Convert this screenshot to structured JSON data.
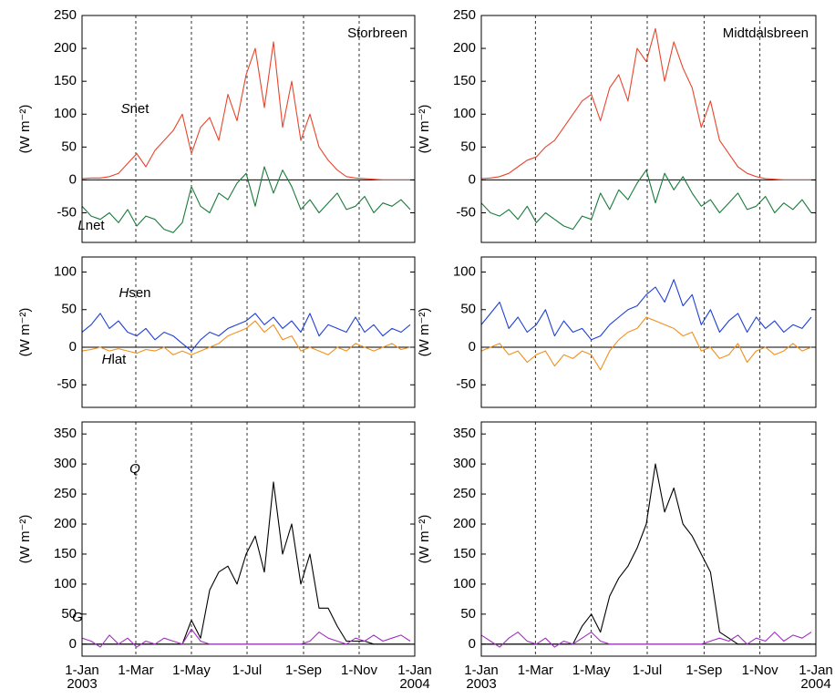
{
  "chart_data": [
    {
      "type": "line",
      "title": "Storbreen",
      "ylabel": "(W m⁻²)",
      "x": [
        "2003-01-01",
        "2003-01-11",
        "2003-01-21",
        "2003-01-31",
        "2003-02-10",
        "2003-02-20",
        "2003-03-02",
        "2003-03-12",
        "2003-03-22",
        "2003-04-01",
        "2003-04-11",
        "2003-04-21",
        "2003-05-01",
        "2003-05-11",
        "2003-05-21",
        "2003-05-31",
        "2003-06-10",
        "2003-06-20",
        "2003-06-30",
        "2003-07-10",
        "2003-07-20",
        "2003-07-30",
        "2003-08-09",
        "2003-08-19",
        "2003-08-29",
        "2003-09-08",
        "2003-09-18",
        "2003-09-28",
        "2003-10-08",
        "2003-10-18",
        "2003-10-28",
        "2003-11-07",
        "2003-11-17",
        "2003-11-27",
        "2003-12-07",
        "2003-12-17",
        "2003-12-27"
      ],
      "xlim": [
        "2003-01-01",
        "2004-01-01"
      ],
      "xticks": [
        {
          "value": "2003-01-01",
          "label": "1-Jan 2003"
        },
        {
          "value": "2003-03-01",
          "label": "1-Mar"
        },
        {
          "value": "2003-05-01",
          "label": "1-May"
        },
        {
          "value": "2003-07-01",
          "label": "1-Jul"
        },
        {
          "value": "2003-09-01",
          "label": "1-Sep"
        },
        {
          "value": "2003-11-01",
          "label": "1-Nov"
        },
        {
          "value": "2004-01-01",
          "label": "1-Jan 2004"
        }
      ],
      "ylim": [
        -95,
        250
      ],
      "yticks": [
        -50,
        0,
        50,
        100,
        150,
        200,
        250
      ],
      "grid_x": true,
      "series": [
        {
          "name": "Snet",
          "color": "#e8452c",
          "values": [
            2,
            3,
            3,
            5,
            10,
            25,
            40,
            20,
            45,
            60,
            75,
            100,
            40,
            80,
            95,
            60,
            130,
            90,
            160,
            200,
            110,
            210,
            80,
            150,
            60,
            100,
            50,
            30,
            15,
            5,
            3,
            2,
            1,
            0,
            0,
            0,
            0
          ]
        },
        {
          "name": "Lnet",
          "color": "#1a7a3a",
          "values": [
            -40,
            -55,
            -60,
            -50,
            -65,
            -45,
            -70,
            -55,
            -60,
            -75,
            -80,
            -65,
            -10,
            -40,
            -50,
            -20,
            -30,
            -5,
            10,
            -40,
            20,
            -20,
            15,
            -10,
            -45,
            -30,
            -50,
            -35,
            -20,
            -45,
            -40,
            -25,
            -50,
            -35,
            -40,
            -30,
            -45
          ]
        }
      ]
    },
    {
      "type": "line",
      "title": "Midtdalsbreen",
      "ylabel": "(W m⁻²)",
      "x": [
        "2003-01-01",
        "2003-01-11",
        "2003-01-21",
        "2003-01-31",
        "2003-02-10",
        "2003-02-20",
        "2003-03-02",
        "2003-03-12",
        "2003-03-22",
        "2003-04-01",
        "2003-04-11",
        "2003-04-21",
        "2003-05-01",
        "2003-05-11",
        "2003-05-21",
        "2003-05-31",
        "2003-06-10",
        "2003-06-20",
        "2003-06-30",
        "2003-07-10",
        "2003-07-20",
        "2003-07-30",
        "2003-08-09",
        "2003-08-19",
        "2003-08-29",
        "2003-09-08",
        "2003-09-18",
        "2003-09-28",
        "2003-10-08",
        "2003-10-18",
        "2003-10-28",
        "2003-11-07",
        "2003-11-17",
        "2003-11-27",
        "2003-12-07",
        "2003-12-17",
        "2003-12-27"
      ],
      "xlim": [
        "2003-01-01",
        "2004-01-01"
      ],
      "xticks": [
        {
          "value": "2003-01-01",
          "label": "1-Jan 2003"
        },
        {
          "value": "2003-03-01",
          "label": "1-Mar"
        },
        {
          "value": "2003-05-01",
          "label": "1-May"
        },
        {
          "value": "2003-07-01",
          "label": "1-Jul"
        },
        {
          "value": "2003-09-01",
          "label": "1-Sep"
        },
        {
          "value": "2003-11-01",
          "label": "1-Nov"
        },
        {
          "value": "2004-01-01",
          "label": "1-Jan 2004"
        }
      ],
      "ylim": [
        -95,
        250
      ],
      "yticks": [
        -50,
        0,
        50,
        100,
        150,
        200,
        250
      ],
      "grid_x": true,
      "series": [
        {
          "color": "#e8452c",
          "values": [
            2,
            3,
            5,
            10,
            20,
            30,
            35,
            50,
            60,
            80,
            100,
            120,
            130,
            90,
            140,
            160,
            120,
            200,
            180,
            230,
            150,
            210,
            170,
            140,
            80,
            120,
            60,
            40,
            20,
            10,
            5,
            2,
            1,
            0,
            0,
            0,
            0
          ]
        },
        {
          "color": "#1a7a3a",
          "values": [
            -35,
            -50,
            -55,
            -45,
            -60,
            -40,
            -65,
            -50,
            -60,
            -70,
            -75,
            -55,
            -60,
            -20,
            -45,
            -15,
            -30,
            -5,
            15,
            -35,
            10,
            -15,
            5,
            -20,
            -40,
            -30,
            -50,
            -35,
            -20,
            -45,
            -40,
            -25,
            -50,
            -35,
            -45,
            -30,
            -50
          ]
        }
      ]
    },
    {
      "type": "line",
      "ylabel": "(W m⁻²)",
      "x": [
        "2003-01-01",
        "2003-01-11",
        "2003-01-21",
        "2003-01-31",
        "2003-02-10",
        "2003-02-20",
        "2003-03-02",
        "2003-03-12",
        "2003-03-22",
        "2003-04-01",
        "2003-04-11",
        "2003-04-21",
        "2003-05-01",
        "2003-05-11",
        "2003-05-21",
        "2003-05-31",
        "2003-06-10",
        "2003-06-20",
        "2003-06-30",
        "2003-07-10",
        "2003-07-20",
        "2003-07-30",
        "2003-08-09",
        "2003-08-19",
        "2003-08-29",
        "2003-09-08",
        "2003-09-18",
        "2003-09-28",
        "2003-10-08",
        "2003-10-18",
        "2003-10-28",
        "2003-11-07",
        "2003-11-17",
        "2003-11-27",
        "2003-12-07",
        "2003-12-17",
        "2003-12-27"
      ],
      "xlim": [
        "2003-01-01",
        "2004-01-01"
      ],
      "xticks": [
        {
          "value": "2003-01-01",
          "label": "1-Jan 2003"
        },
        {
          "value": "2003-03-01",
          "label": "1-Mar"
        },
        {
          "value": "2003-05-01",
          "label": "1-May"
        },
        {
          "value": "2003-07-01",
          "label": "1-Jul"
        },
        {
          "value": "2003-09-01",
          "label": "1-Sep"
        },
        {
          "value": "2003-11-01",
          "label": "1-Nov"
        },
        {
          "value": "2004-01-01",
          "label": "1-Jan 2004"
        }
      ],
      "ylim": [
        -80,
        120
      ],
      "yticks": [
        -50,
        0,
        50,
        100
      ],
      "grid_x": true,
      "series": [
        {
          "name": "Hsen",
          "color": "#1f3fd6",
          "values": [
            20,
            30,
            45,
            25,
            35,
            20,
            15,
            25,
            10,
            20,
            15,
            5,
            -5,
            10,
            20,
            15,
            25,
            30,
            35,
            45,
            30,
            40,
            25,
            35,
            20,
            45,
            15,
            30,
            25,
            20,
            40,
            20,
            30,
            15,
            25,
            20,
            30
          ]
        },
        {
          "name": "Hlat",
          "color": "#f0901e",
          "values": [
            -5,
            -3,
            0,
            -5,
            -2,
            -5,
            -8,
            -3,
            -5,
            0,
            -10,
            -5,
            -10,
            -5,
            0,
            5,
            15,
            20,
            25,
            35,
            20,
            30,
            10,
            15,
            -5,
            0,
            -5,
            -10,
            0,
            -5,
            5,
            0,
            -5,
            0,
            5,
            -3,
            0
          ]
        }
      ]
    },
    {
      "type": "line",
      "ylabel": "(W m⁻²)",
      "x": [
        "2003-01-01",
        "2003-01-11",
        "2003-01-21",
        "2003-01-31",
        "2003-02-10",
        "2003-02-20",
        "2003-03-02",
        "2003-03-12",
        "2003-03-22",
        "2003-04-01",
        "2003-04-11",
        "2003-04-21",
        "2003-05-01",
        "2003-05-11",
        "2003-05-21",
        "2003-05-31",
        "2003-06-10",
        "2003-06-20",
        "2003-06-30",
        "2003-07-10",
        "2003-07-20",
        "2003-07-30",
        "2003-08-09",
        "2003-08-19",
        "2003-08-29",
        "2003-09-08",
        "2003-09-18",
        "2003-09-28",
        "2003-10-08",
        "2003-10-18",
        "2003-10-28",
        "2003-11-07",
        "2003-11-17",
        "2003-11-27",
        "2003-12-07",
        "2003-12-17",
        "2003-12-27"
      ],
      "xlim": [
        "2003-01-01",
        "2004-01-01"
      ],
      "xticks": [
        {
          "value": "2003-01-01",
          "label": "1-Jan 2003"
        },
        {
          "value": "2003-03-01",
          "label": "1-Mar"
        },
        {
          "value": "2003-05-01",
          "label": "1-May"
        },
        {
          "value": "2003-07-01",
          "label": "1-Jul"
        },
        {
          "value": "2003-09-01",
          "label": "1-Sep"
        },
        {
          "value": "2003-11-01",
          "label": "1-Nov"
        },
        {
          "value": "2004-01-01",
          "label": "1-Jan 2004"
        }
      ],
      "ylim": [
        -80,
        120
      ],
      "yticks": [
        -50,
        0,
        50,
        100
      ],
      "grid_x": true,
      "series": [
        {
          "color": "#1f3fd6",
          "values": [
            30,
            45,
            60,
            25,
            40,
            20,
            30,
            50,
            15,
            35,
            20,
            25,
            10,
            15,
            30,
            40,
            50,
            55,
            70,
            80,
            60,
            90,
            55,
            70,
            30,
            50,
            20,
            35,
            45,
            20,
            40,
            25,
            35,
            20,
            30,
            25,
            40
          ]
        },
        {
          "color": "#f0901e",
          "values": [
            -5,
            0,
            5,
            -10,
            -5,
            -20,
            -10,
            -5,
            -25,
            -10,
            -15,
            -5,
            -10,
            -30,
            -5,
            10,
            20,
            25,
            40,
            35,
            30,
            25,
            15,
            20,
            -5,
            0,
            -15,
            -10,
            5,
            -20,
            -5,
            0,
            -10,
            -5,
            5,
            -5,
            0
          ]
        }
      ]
    },
    {
      "type": "line",
      "ylabel": "(W m⁻²)",
      "x": [
        "2003-01-01",
        "2003-01-11",
        "2003-01-21",
        "2003-01-31",
        "2003-02-10",
        "2003-02-20",
        "2003-03-02",
        "2003-03-12",
        "2003-03-22",
        "2003-04-01",
        "2003-04-11",
        "2003-04-21",
        "2003-05-01",
        "2003-05-11",
        "2003-05-21",
        "2003-05-31",
        "2003-06-10",
        "2003-06-20",
        "2003-06-30",
        "2003-07-10",
        "2003-07-20",
        "2003-07-30",
        "2003-08-09",
        "2003-08-19",
        "2003-08-29",
        "2003-09-08",
        "2003-09-18",
        "2003-09-28",
        "2003-10-08",
        "2003-10-18",
        "2003-10-28",
        "2003-11-07",
        "2003-11-17",
        "2003-11-27",
        "2003-12-07",
        "2003-12-17",
        "2003-12-27"
      ],
      "xlim": [
        "2003-01-01",
        "2004-01-01"
      ],
      "xticks": [
        {
          "value": "2003-01-01",
          "label": "1-Jan 2003"
        },
        {
          "value": "2003-03-01",
          "label": "1-Mar"
        },
        {
          "value": "2003-05-01",
          "label": "1-May"
        },
        {
          "value": "2003-07-01",
          "label": "1-Jul"
        },
        {
          "value": "2003-09-01",
          "label": "1-Sep"
        },
        {
          "value": "2003-11-01",
          "label": "1-Nov"
        },
        {
          "value": "2004-01-01",
          "label": "1-Jan 2004"
        }
      ],
      "ylim": [
        -20,
        370
      ],
      "yticks": [
        0,
        50,
        100,
        150,
        200,
        250,
        300,
        350
      ],
      "grid_x": true,
      "series": [
        {
          "name": "Q",
          "color": "#000000",
          "values": [
            0,
            0,
            0,
            0,
            0,
            0,
            0,
            0,
            0,
            0,
            0,
            0,
            40,
            10,
            90,
            120,
            130,
            100,
            150,
            180,
            120,
            270,
            150,
            200,
            100,
            150,
            60,
            60,
            30,
            5,
            5,
            5,
            0,
            0,
            0,
            0,
            0
          ]
        },
        {
          "name": "G",
          "color": "#a030c0",
          "values": [
            10,
            5,
            -5,
            15,
            0,
            10,
            -5,
            5,
            0,
            10,
            5,
            0,
            25,
            5,
            0,
            0,
            0,
            0,
            0,
            0,
            0,
            0,
            0,
            0,
            0,
            5,
            20,
            10,
            5,
            0,
            10,
            5,
            15,
            5,
            10,
            15,
            5
          ]
        }
      ]
    },
    {
      "type": "line",
      "ylabel": "(W m⁻²)",
      "x": [
        "2003-01-01",
        "2003-01-11",
        "2003-01-21",
        "2003-01-31",
        "2003-02-10",
        "2003-02-20",
        "2003-03-02",
        "2003-03-12",
        "2003-03-22",
        "2003-04-01",
        "2003-04-11",
        "2003-04-21",
        "2003-05-01",
        "2003-05-11",
        "2003-05-21",
        "2003-05-31",
        "2003-06-10",
        "2003-06-20",
        "2003-06-30",
        "2003-07-10",
        "2003-07-20",
        "2003-07-30",
        "2003-08-09",
        "2003-08-19",
        "2003-08-29",
        "2003-09-08",
        "2003-09-18",
        "2003-09-28",
        "2003-10-08",
        "2003-10-18",
        "2003-10-28",
        "2003-11-07",
        "2003-11-17",
        "2003-11-27",
        "2003-12-07",
        "2003-12-17",
        "2003-12-27"
      ],
      "xlim": [
        "2003-01-01",
        "2004-01-01"
      ],
      "xticks": [
        {
          "value": "2003-01-01",
          "label": "1-Jan 2003"
        },
        {
          "value": "2003-03-01",
          "label": "1-Mar"
        },
        {
          "value": "2003-05-01",
          "label": "1-May"
        },
        {
          "value": "2003-07-01",
          "label": "1-Jul"
        },
        {
          "value": "2003-09-01",
          "label": "1-Sep"
        },
        {
          "value": "2003-11-01",
          "label": "1-Nov"
        },
        {
          "value": "2004-01-01",
          "label": "1-Jan 2004"
        }
      ],
      "ylim": [
        -20,
        370
      ],
      "yticks": [
        0,
        50,
        100,
        150,
        200,
        250,
        300,
        350
      ],
      "grid_x": true,
      "series": [
        {
          "color": "#000000",
          "values": [
            0,
            0,
            0,
            0,
            0,
            0,
            0,
            0,
            0,
            0,
            0,
            30,
            50,
            20,
            80,
            110,
            130,
            160,
            200,
            300,
            220,
            260,
            200,
            180,
            150,
            120,
            20,
            10,
            0,
            0,
            0,
            0,
            0,
            0,
            0,
            0,
            0
          ]
        },
        {
          "color": "#a030c0",
          "values": [
            15,
            5,
            -5,
            10,
            20,
            5,
            0,
            10,
            -5,
            5,
            0,
            10,
            20,
            5,
            0,
            0,
            0,
            0,
            0,
            0,
            0,
            0,
            0,
            0,
            0,
            5,
            10,
            5,
            15,
            0,
            10,
            5,
            20,
            5,
            15,
            10,
            20
          ]
        }
      ]
    }
  ]
}
